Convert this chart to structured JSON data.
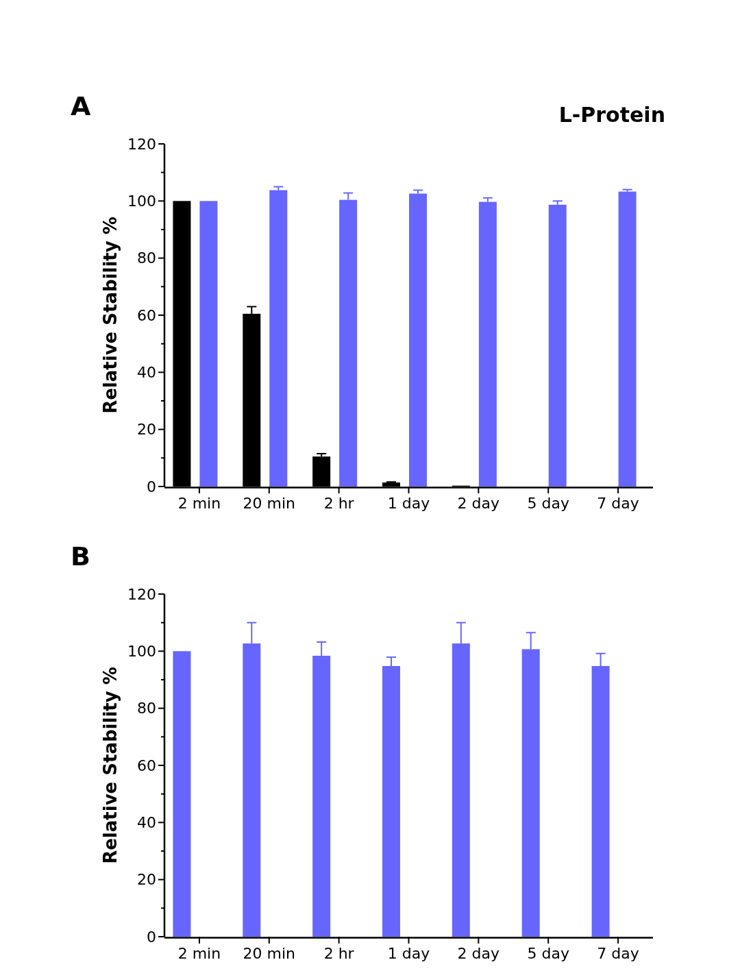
{
  "chart_data": [
    {
      "type": "bar",
      "title": "A",
      "ylabel": "Relative Stability %",
      "categories": [
        "2 min",
        "20 min",
        "2 hr",
        "1 day",
        "2 day",
        "5 day",
        "7 day"
      ],
      "series": [
        {
          "name": "L-Protein",
          "color": "#000000",
          "values": [
            100,
            60.5,
            10.5,
            1.4,
            0.3,
            0,
            0
          ],
          "errors": [
            null,
            [
              60.5,
              63
            ],
            [
              10.5,
              11.5
            ],
            [
              1.4,
              1.6
            ],
            null,
            null,
            null
          ]
        },
        {
          "color": "#6666ff",
          "values": [
            100,
            103.8,
            100.4,
            102.6,
            99.7,
            98.7,
            103.3
          ],
          "errors": [
            null,
            [
              103.8,
              105
            ],
            [
              100.4,
              102.8
            ],
            [
              102.6,
              103.8
            ],
            [
              99.7,
              101.1
            ],
            [
              98.7,
              100
            ],
            [
              103.3,
              104
            ]
          ]
        }
      ],
      "ylim": [
        0,
        120
      ],
      "yticks": [
        0,
        {
          "value": 10,
          "label": null
        },
        20,
        {
          "value": 30,
          "label": null
        },
        40,
        {
          "value": 50,
          "label": null
        },
        60,
        {
          "value": 70,
          "label": null
        },
        80,
        {
          "value": 90,
          "label": null
        },
        100,
        {
          "value": 110,
          "label": null
        },
        120
      ],
      "grid": false,
      "legend": "top right"
    },
    {
      "type": "bar",
      "title": "B",
      "ylabel": "Relative Stability %",
      "categories": [
        "2 min",
        "20 min",
        "2 hr",
        "1 day",
        "2 day",
        "5 day",
        "7 day"
      ],
      "series": [
        {
          "color": "#6666ff",
          "values": [
            100,
            102.7,
            98.4,
            94.8,
            102.7,
            100.7,
            94.8
          ],
          "errors": [
            null,
            [
              102.7,
              110
            ],
            [
              98.4,
              103.2
            ],
            [
              94.8,
              97.9
            ],
            [
              102.7,
              110
            ],
            [
              100.7,
              106.5
            ],
            [
              94.8,
              99.2
            ]
          ]
        }
      ],
      "ylim": [
        0,
        120
      ],
      "yticks": [
        0,
        {
          "value": 10,
          "label": null
        },
        20,
        {
          "value": 30,
          "label": null
        },
        40,
        {
          "value": 50,
          "label": null
        },
        60,
        {
          "value": 70,
          "label": null
        },
        80,
        {
          "value": 90,
          "label": null
        },
        100,
        {
          "value": 110,
          "label": null
        },
        120
      ],
      "grid": false,
      "legend": false
    }
  ]
}
